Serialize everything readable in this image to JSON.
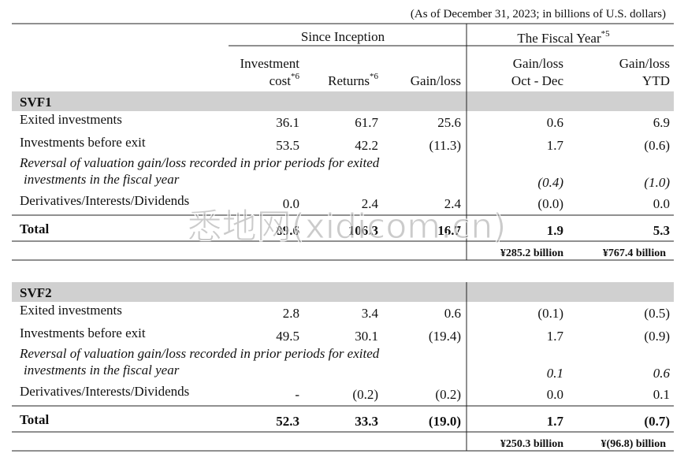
{
  "note": "(As of December 31, 2023; in billions of U.S. dollars)",
  "groups": [
    {
      "label": "Since Inception"
    },
    {
      "label": "The Fiscal Year",
      "sup": "*5"
    }
  ],
  "columns": [
    {
      "lines": [
        "Investment",
        "cost"
      ],
      "sup": "*6"
    },
    {
      "lines": [
        "Returns"
      ],
      "sup": "*6"
    },
    {
      "lines": [
        "Gain/loss"
      ]
    },
    {
      "lines": [
        "Gain/loss",
        "Oct - Dec"
      ]
    },
    {
      "lines": [
        "Gain/loss",
        "YTD"
      ]
    }
  ],
  "sections": [
    {
      "name": "SVF1",
      "rows": [
        {
          "label": [
            "Exited investments"
          ],
          "values": [
            "36.1",
            "61.7",
            "25.6",
            "0.6",
            "6.9"
          ]
        },
        {
          "label": [
            "Investments before exit"
          ],
          "values": [
            "53.5",
            "42.2",
            "(11.3)",
            "1.7",
            "(0.6)"
          ]
        },
        {
          "label": [
            "Reversal of valuation gain/loss recorded in prior periods for exited",
            "investments in the fiscal year"
          ],
          "italic": true,
          "values": [
            null,
            null,
            null,
            "(0.4)",
            "(1.0)"
          ]
        },
        {
          "label": [
            "Derivatives/Interests/Dividends"
          ],
          "values": [
            "0.0",
            "2.4",
            "2.4",
            "(0.0)",
            "0.0"
          ]
        }
      ],
      "total": {
        "label": "Total",
        "values": [
          "89.6",
          "106.3",
          "16.7",
          "1.9",
          "5.3"
        ]
      },
      "yen": [
        "¥285.2 billion",
        "¥767.4 billion"
      ]
    },
    {
      "name": "SVF2",
      "rows": [
        {
          "label": [
            "Exited investments"
          ],
          "values": [
            "2.8",
            "3.4",
            "0.6",
            "(0.1)",
            "(0.5)"
          ]
        },
        {
          "label": [
            "Investments before exit"
          ],
          "values": [
            "49.5",
            "30.1",
            "(19.4)",
            "1.7",
            "(0.9)"
          ]
        },
        {
          "label": [
            "Reversal of valuation gain/loss recorded in prior periods for exited",
            "investments in the fiscal year"
          ],
          "italic": true,
          "values": [
            null,
            null,
            null,
            "0.1",
            "0.6"
          ]
        },
        {
          "label": [
            "Derivatives/Interests/Dividends"
          ],
          "values": [
            "-",
            "(0.2)",
            "(0.2)",
            "0.0",
            "0.1"
          ]
        }
      ],
      "total": {
        "label": "Total",
        "values": [
          "52.3",
          "33.3",
          "(19.0)",
          "1.7",
          "(0.7)"
        ]
      },
      "yen": [
        "¥250.3 billion",
        "¥(96.8) billion"
      ]
    }
  ],
  "watermark": "悉地网(xidicom.cn)"
}
